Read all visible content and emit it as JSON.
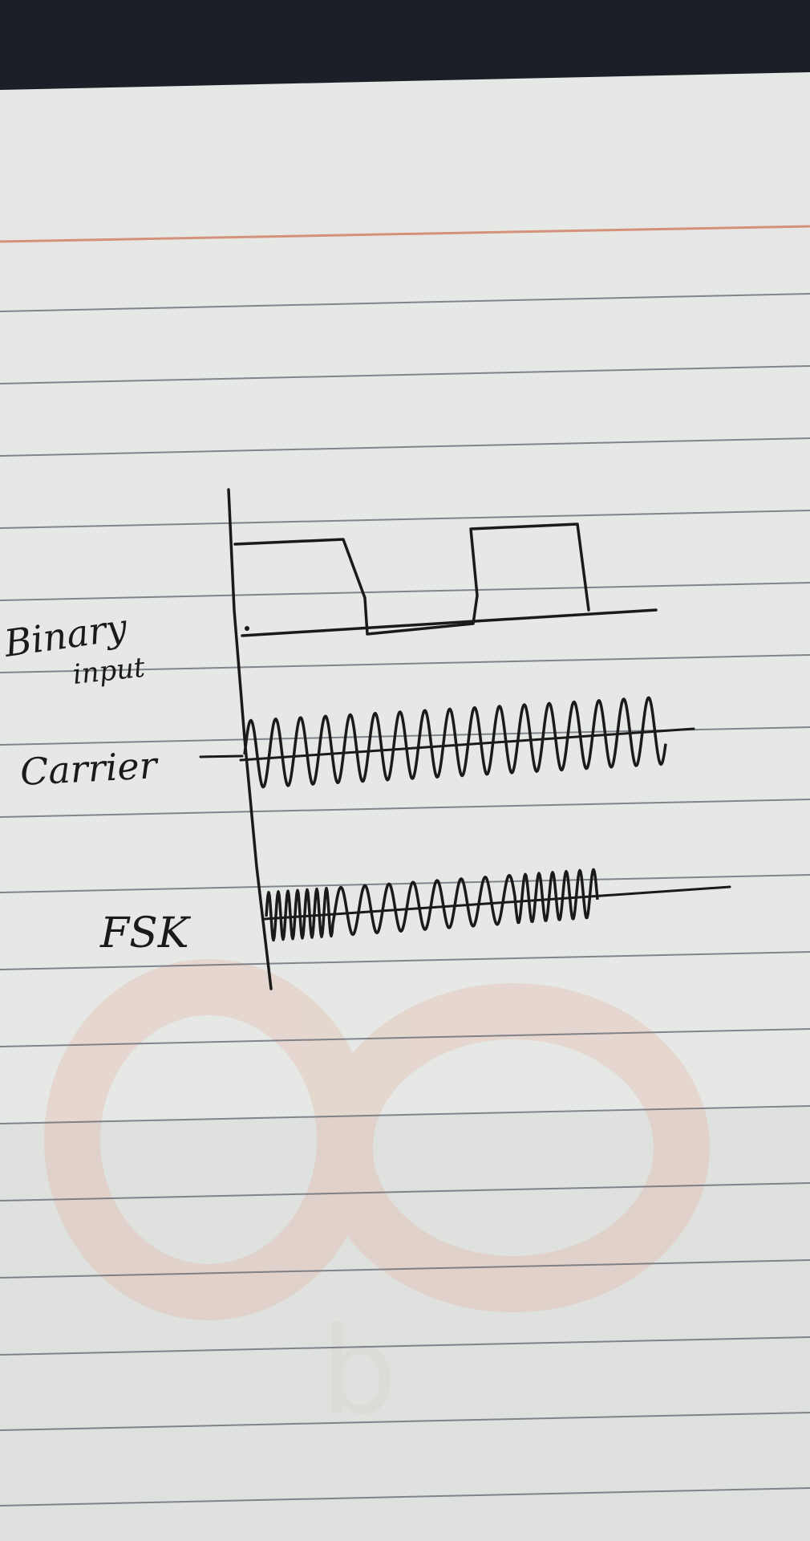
{
  "labels": {
    "binary_line1": "Binary",
    "binary_line2": "input",
    "carrier": "Carrier",
    "fsk": "FSK"
  },
  "colors": {
    "background_dark": "#1b1f27",
    "paper": "#e7e9e6",
    "rule_line": "#5f6470",
    "margin_line": "#d4927a",
    "ink": "#1a1a1a",
    "watermark": "#e2b8a6"
  },
  "icons": {
    "watermark": "faint-logo-watermark"
  }
}
